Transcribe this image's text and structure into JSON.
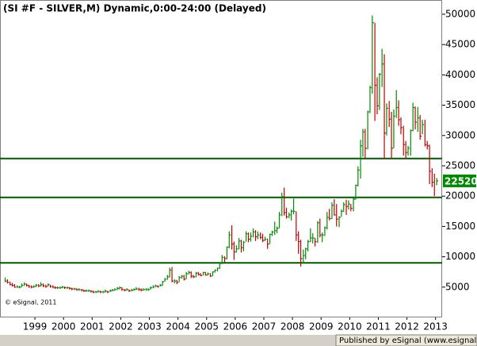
{
  "chart_data": {
    "type": "ohlc",
    "title": "(SI #F - SILVER,M) Dynamic,0:00-24:00 (Delayed)",
    "copyright": "© eSignal, 2011",
    "publisher": "Published by eSignal (www.esignal.com)",
    "xlim": [
      1998.28,
      2013.73
    ],
    "xticks": [
      {
        "value": 1999.5,
        "label": "1999"
      },
      {
        "value": 2000.5,
        "label": "2000"
      },
      {
        "value": 2001.5,
        "label": "2001"
      },
      {
        "value": 2002.5,
        "label": "2002"
      },
      {
        "value": 2003.5,
        "label": "2003"
      },
      {
        "value": 2004.5,
        "label": "2004"
      },
      {
        "value": 2005.5,
        "label": "2005"
      },
      {
        "value": 2006.5,
        "label": "2006"
      },
      {
        "value": 2007.5,
        "label": "2007"
      },
      {
        "value": 2008.5,
        "label": "2008"
      },
      {
        "value": 2009.5,
        "label": "2009"
      },
      {
        "value": 2010.5,
        "label": "2010"
      },
      {
        "value": 2011.5,
        "label": "2011"
      },
      {
        "value": 2012.5,
        "label": "2012"
      },
      {
        "value": 2013.5,
        "label": "2013"
      }
    ],
    "ylim": [
      0,
      52350
    ],
    "yticks": [
      5000,
      10000,
      15000,
      20000,
      25000,
      30000,
      35000,
      40000,
      45000,
      50000
    ],
    "levels": [
      26200,
      19800,
      9000
    ],
    "level_color": "#005a00",
    "up_color": "#008a00",
    "down_color": "#c00000",
    "last_color": "#008a00",
    "x": [
      1998.46,
      1998.54,
      1998.63,
      1998.71,
      1998.79,
      1998.88,
      1998.96,
      1999.04,
      1999.13,
      1999.21,
      1999.29,
      1999.38,
      1999.46,
      1999.54,
      1999.63,
      1999.71,
      1999.79,
      1999.88,
      1999.96,
      2000.04,
      2000.13,
      2000.21,
      2000.29,
      2000.38,
      2000.46,
      2000.54,
      2000.63,
      2000.71,
      2000.79,
      2000.88,
      2000.96,
      2001.04,
      2001.13,
      2001.21,
      2001.29,
      2001.38,
      2001.46,
      2001.54,
      2001.63,
      2001.71,
      2001.79,
      2001.88,
      2001.96,
      2002.04,
      2002.13,
      2002.21,
      2002.29,
      2002.38,
      2002.46,
      2002.54,
      2002.63,
      2002.71,
      2002.79,
      2002.88,
      2002.96,
      2003.04,
      2003.13,
      2003.21,
      2003.29,
      2003.38,
      2003.46,
      2003.54,
      2003.63,
      2003.71,
      2003.79,
      2003.88,
      2003.96,
      2004.04,
      2004.13,
      2004.21,
      2004.29,
      2004.38,
      2004.46,
      2004.54,
      2004.63,
      2004.71,
      2004.79,
      2004.88,
      2004.96,
      2005.04,
      2005.13,
      2005.21,
      2005.29,
      2005.38,
      2005.46,
      2005.54,
      2005.63,
      2005.71,
      2005.79,
      2005.88,
      2005.96,
      2006.04,
      2006.13,
      2006.21,
      2006.29,
      2006.38,
      2006.46,
      2006.54,
      2006.63,
      2006.71,
      2006.79,
      2006.88,
      2006.96,
      2007.04,
      2007.13,
      2007.21,
      2007.29,
      2007.38,
      2007.46,
      2007.54,
      2007.63,
      2007.71,
      2007.79,
      2007.88,
      2007.96,
      2008.04,
      2008.13,
      2008.21,
      2008.29,
      2008.38,
      2008.46,
      2008.54,
      2008.63,
      2008.71,
      2008.79,
      2008.88,
      2008.96,
      2009.04,
      2009.13,
      2009.21,
      2009.29,
      2009.38,
      2009.46,
      2009.54,
      2009.63,
      2009.71,
      2009.79,
      2009.88,
      2009.96,
      2010.04,
      2010.13,
      2010.21,
      2010.29,
      2010.38,
      2010.46,
      2010.54,
      2010.63,
      2010.71,
      2010.79,
      2010.88,
      2010.96,
      2011.04,
      2011.13,
      2011.21,
      2011.29,
      2011.38,
      2011.46,
      2011.54,
      2011.63,
      2011.71,
      2011.79,
      2011.88,
      2011.96,
      2012.04,
      2012.13,
      2012.21,
      2012.29,
      2012.38,
      2012.46,
      2012.54,
      2012.63,
      2012.71,
      2012.79,
      2012.88,
      2012.96,
      2013.04,
      2013.13,
      2013.21,
      2013.29,
      2013.38,
      2013.46,
      2013.54
    ],
    "high": [
      6600,
      6300,
      5900,
      5700,
      5500,
      5300,
      5200,
      5600,
      5800,
      5600,
      5400,
      5300,
      5300,
      5500,
      5500,
      5800,
      5600,
      5400,
      5600,
      5400,
      5300,
      5100,
      5100,
      5100,
      5200,
      5100,
      5100,
      5000,
      4900,
      4900,
      4800,
      4800,
      4700,
      4600,
      4600,
      4600,
      4500,
      4400,
      4400,
      4500,
      4400,
      4400,
      4600,
      4400,
      4600,
      4700,
      4800,
      5000,
      5100,
      5000,
      4700,
      4800,
      4600,
      4700,
      4800,
      5000,
      4900,
      4800,
      4800,
      4800,
      4800,
      5100,
      5300,
      5400,
      5300,
      5500,
      6000,
      6500,
      7000,
      8200,
      8300,
      6300,
      6200,
      6800,
      7000,
      7000,
      7500,
      7700,
      7600,
      7000,
      7500,
      7500,
      7300,
      7500,
      7500,
      7400,
      7300,
      7600,
      7900,
      8200,
      9000,
      10300,
      10100,
      11700,
      14200,
      15200,
      12500,
      11900,
      13100,
      12800,
      12600,
      14200,
      14000,
      14000,
      14700,
      14400,
      14200,
      14000,
      13800,
      13300,
      13000,
      13800,
      14300,
      15800,
      15000,
      17400,
      20600,
      21400,
      18100,
      17300,
      17800,
      19600,
      17500,
      14200,
      12800,
      11200,
      11500,
      12800,
      14700,
      13900,
      13100,
      15900,
      16300,
      14000,
      15000,
      17400,
      17900,
      19000,
      19500,
      18700,
      16700,
      17800,
      19000,
      19400,
      19300,
      18700,
      19700,
      21900,
      24900,
      29300,
      31100,
      31100,
      34100,
      38200,
      49800,
      48600,
      39600,
      40300,
      44300,
      43400,
      35300,
      35700,
      33900,
      34300,
      37500,
      35800,
      33000,
      31600,
      29100,
      28300,
      31000,
      35400,
      34800,
      34700,
      33400,
      32600,
      32600,
      29100,
      28500,
      24600,
      23700,
      23000
    ],
    "low": [
      5800,
      5600,
      5300,
      5100,
      4900,
      4900,
      4800,
      5000,
      5200,
      5100,
      4900,
      4800,
      4900,
      5000,
      5000,
      5100,
      5000,
      4900,
      5100,
      4900,
      4800,
      4700,
      4700,
      4700,
      4800,
      4700,
      4700,
      4600,
      4500,
      4500,
      4400,
      4400,
      4300,
      4200,
      4200,
      4200,
      4100,
      4000,
      4000,
      4100,
      4000,
      4000,
      4100,
      4000,
      4200,
      4300,
      4400,
      4500,
      4600,
      4400,
      4300,
      4400,
      4200,
      4300,
      4400,
      4500,
      4400,
      4300,
      4400,
      4400,
      4400,
      4600,
      4800,
      5000,
      4900,
      5100,
      5200,
      5900,
      6200,
      6600,
      5800,
      5600,
      5500,
      5800,
      6400,
      6100,
      6300,
      7100,
      6500,
      6500,
      6600,
      6900,
      6800,
      6900,
      6900,
      6900,
      6700,
      6800,
      7400,
      7600,
      8000,
      8800,
      9100,
      9600,
      11400,
      11200,
      9500,
      10700,
      11200,
      10700,
      10900,
      12500,
      12400,
      12500,
      13200,
      12600,
      12900,
      12900,
      12400,
      12600,
      11300,
      12100,
      13400,
      13600,
      13900,
      14700,
      16700,
      16800,
      16300,
      16400,
      16000,
      17000,
      12600,
      10500,
      8400,
      8900,
      9600,
      10900,
      12400,
      12200,
      11700,
      12300,
      13200,
      12400,
      13400,
      14500,
      16000,
      16200,
      16800,
      15000,
      14900,
      16600,
      17400,
      16900,
      17800,
      17500,
      17500,
      19400,
      21600,
      22900,
      26500,
      26300,
      27700,
      33700,
      36900,
      32400,
      33500,
      34200,
      38000,
      26100,
      30000,
      31400,
      26200,
      27900,
      32900,
      31600,
      30200,
      26700,
      26100,
      26700,
      26700,
      30700,
      31000,
      30600,
      29300,
      30200,
      28200,
      27700,
      22000,
      21500,
      20000,
      21800
    ],
    "close": [
      6000,
      5800,
      5400,
      5300,
      5000,
      5000,
      5000,
      5300,
      5500,
      5300,
      5100,
      5000,
      5100,
      5300,
      5200,
      5400,
      5200,
      5100,
      5400,
      5100,
      5000,
      4900,
      4900,
      4900,
      5000,
      4900,
      4900,
      4800,
      4700,
      4700,
      4600,
      4600,
      4500,
      4400,
      4400,
      4400,
      4300,
      4200,
      4200,
      4300,
      4200,
      4200,
      4300,
      4200,
      4400,
      4500,
      4600,
      4800,
      4900,
      4600,
      4500,
      4600,
      4400,
      4500,
      4600,
      4700,
      4600,
      4500,
      4600,
      4600,
      4600,
      4900,
      5000,
      5200,
      5100,
      5300,
      5900,
      6300,
      6700,
      7800,
      6000,
      6000,
      5800,
      6600,
      6800,
      6300,
      7200,
      7400,
      6800,
      6700,
      7300,
      7100,
      6900,
      7400,
      7000,
      7200,
      6800,
      7500,
      7800,
      8100,
      8900,
      9900,
      9700,
      11600,
      13600,
      12100,
      10800,
      11300,
      12600,
      11500,
      12400,
      13800,
      12900,
      13400,
      14100,
      13300,
      13600,
      13200,
      12700,
      12900,
      12100,
      13700,
      14100,
      14300,
      14700,
      16900,
      19900,
      17300,
      16600,
      16900,
      17500,
      17500,
      13600,
      12500,
      9700,
      10200,
      11300,
      12500,
      13100,
      13100,
      12500,
      15600,
      13600,
      13600,
      14800,
      16500,
      16300,
      18500,
      16900,
      16200,
      16500,
      17500,
      18600,
      18300,
      18700,
      18000,
      19500,
      21800,
      24300,
      28300,
      30600,
      27900,
      33900,
      37900,
      48600,
      38300,
      34900,
      40100,
      41800,
      30400,
      34500,
      32700,
      27900,
      33200,
      34600,
      32600,
      31300,
      28500,
      27200,
      27900,
      30800,
      34600,
      32200,
      32900,
      29900,
      31800,
      28500,
      28300,
      24100,
      22300,
      19800,
      22520
    ]
  }
}
